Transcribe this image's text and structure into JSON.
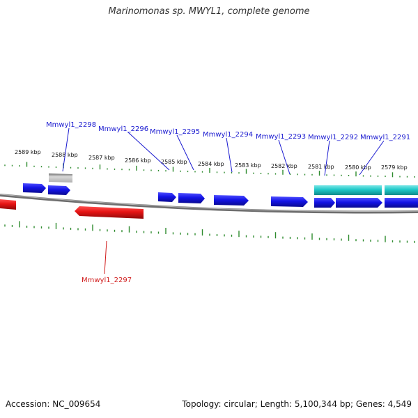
{
  "header": {
    "title": "Marinomonas sp. MWYL1, complete genome"
  },
  "footer": {
    "accession": "Accession: NC_009654",
    "summary": "Topology: circular; Length: 5,100,344 bp; Genes: 4,549"
  },
  "colors": {
    "forward_gene": "#1414e6",
    "reverse_gene": "#e61414",
    "rna_gene": "#1ec8c8",
    "pseudo_gene": "#a8a8a8",
    "backbone": "#8a8a8a",
    "tick": "#2e8b2e",
    "forward_label": "#1a1ad0",
    "reverse_label": "#d01a1a"
  },
  "scale": {
    "unit": "kbp",
    "labels": [
      "2589 kbp",
      "2588 kbp",
      "2587 kbp",
      "2586 kbp",
      "2585 kbp",
      "2584 kbp",
      "2583 kbp",
      "2582 kbp",
      "2581 kbp",
      "2580 kbp",
      "2579 kbp"
    ]
  },
  "genes": {
    "labeled": [
      {
        "id": "Mmwyl1_2298",
        "strand": "forward"
      },
      {
        "id": "Mmwyl1_2296",
        "strand": "forward"
      },
      {
        "id": "Mmwyl1_2295",
        "strand": "forward"
      },
      {
        "id": "Mmwyl1_2294",
        "strand": "forward"
      },
      {
        "id": "Mmwyl1_2293",
        "strand": "forward"
      },
      {
        "id": "Mmwyl1_2292",
        "strand": "forward"
      },
      {
        "id": "Mmwyl1_2291",
        "strand": "forward"
      },
      {
        "id": "Mmwyl1_2297",
        "strand": "reverse"
      }
    ]
  }
}
